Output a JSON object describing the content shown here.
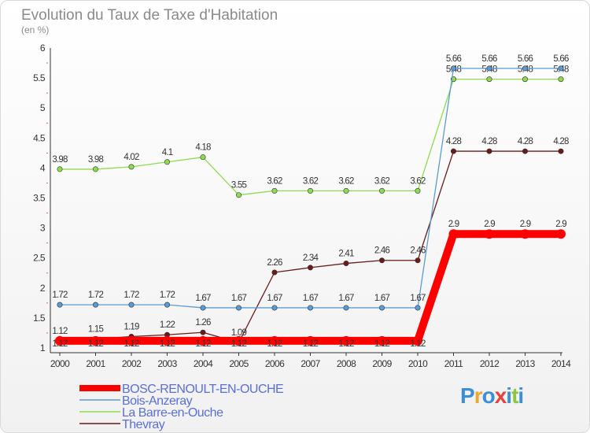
{
  "chart_data": {
    "type": "line",
    "title": "Evolution du Taux de Taxe d'Habitation",
    "subtitle": "(en %)",
    "x": [
      "2000",
      "2001",
      "2002",
      "2003",
      "2004",
      "2005",
      "2006",
      "2007",
      "2008",
      "2009",
      "2010",
      "2011",
      "2012",
      "2013",
      "2014"
    ],
    "ylim": [
      1,
      6
    ],
    "yticks": [
      "1",
      "1.5",
      "2",
      "2.5",
      "3",
      "3.5",
      "4",
      "4.5",
      "5",
      "5.5",
      "6"
    ],
    "grid": false,
    "legend_position": "bottom-left",
    "series": [
      {
        "name": "Thevray",
        "color": "#6b1a1a",
        "values": [
          1.12,
          1.15,
          1.19,
          1.22,
          1.26,
          1.09,
          2.26,
          2.34,
          2.41,
          2.46,
          2.46,
          4.28,
          4.28,
          4.28,
          4.28
        ],
        "labels": [
          "1.12",
          "1.15",
          "1.19",
          "1.22",
          "1.26",
          "1.09",
          "2.26",
          "2.34",
          "2.41",
          "2.46",
          "2.46",
          "4.28",
          "4.28",
          "4.28",
          "4.28"
        ]
      },
      {
        "name": "La Barre-en-Ouche",
        "color": "#8fdb4f",
        "values": [
          3.98,
          3.98,
          4.02,
          4.1,
          4.18,
          3.55,
          3.62,
          3.62,
          3.62,
          3.62,
          3.62,
          5.48,
          5.48,
          5.48,
          5.48
        ],
        "labels": [
          "3.98",
          "3.98",
          "4.02",
          "4.1",
          "4.18",
          "3.55",
          "3.62",
          "3.62",
          "3.62",
          "3.62",
          "3.62",
          "5.48",
          "5.48",
          "5.48",
          "5.48"
        ]
      },
      {
        "name": "Bois-Anzeray",
        "color": "#5b9bd5",
        "values": [
          1.72,
          1.72,
          1.72,
          1.72,
          1.67,
          1.67,
          1.67,
          1.67,
          1.67,
          1.67,
          1.67,
          5.66,
          5.66,
          5.66,
          5.66
        ],
        "labels": [
          "1.72",
          "1.72",
          "1.72",
          "1.72",
          "1.67",
          "1.67",
          "1.67",
          "1.67",
          "1.67",
          "1.67",
          "1.67",
          "5.66",
          "5.66",
          "5.66",
          "5.66"
        ]
      },
      {
        "name": "BOSC-RENOULT-EN-OUCHE",
        "color": "#ff0000",
        "values": [
          1.12,
          1.12,
          1.12,
          1.12,
          1.12,
          1.12,
          1.12,
          1.12,
          1.12,
          1.12,
          1.12,
          2.9,
          2.9,
          2.9,
          2.9
        ],
        "labels": [
          "1.12",
          "1.12",
          "1.12",
          "1.12",
          "1.12",
          "1.12",
          "1.12",
          "1.12",
          "1.12",
          "1.12",
          "1.12",
          "2.9",
          "2.9",
          "2.9",
          "2.9"
        ]
      }
    ],
    "legend": [
      "BOSC-RENOULT-EN-OUCHE",
      "Bois-Anzeray",
      "La Barre-en-Ouche",
      "Thevray"
    ]
  },
  "logo": {
    "text": "Proxiti",
    "colors": [
      "#3a8fd6",
      "#f5a623",
      "#3a8fd6",
      "#e8413c",
      "#3a8fd6",
      "#8dc63f",
      "#3a8fd6"
    ]
  }
}
